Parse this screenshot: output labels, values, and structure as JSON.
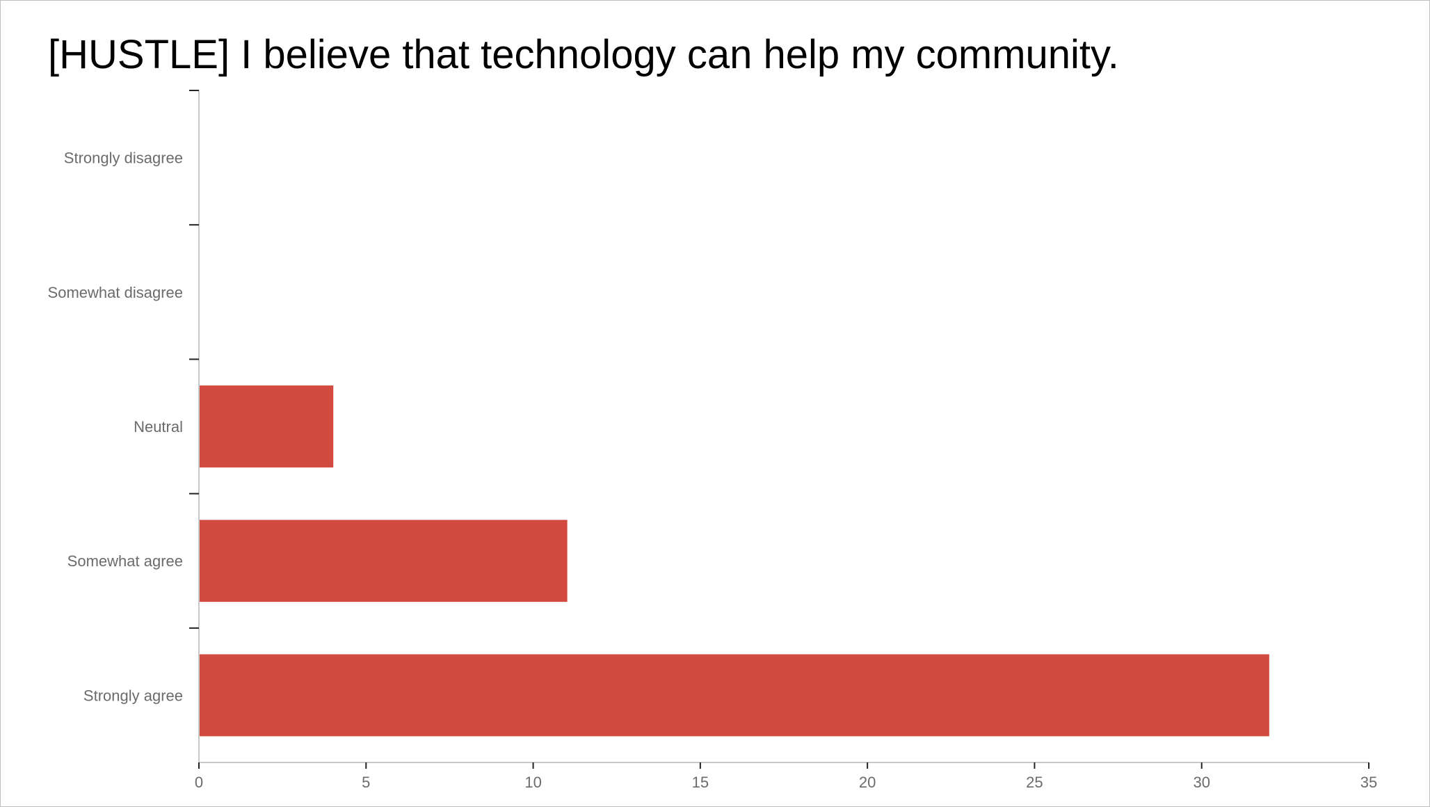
{
  "slide": {
    "title": "[HUSTLE] I believe that technology can help my community."
  },
  "colors": {
    "bar": "#d24a40",
    "axis": "#c8c8c8",
    "tick_mark": "#222222",
    "label": "#6b6b6b"
  },
  "chart_data": {
    "type": "bar",
    "orientation": "horizontal",
    "title": "[HUSTLE] I believe that technology can help my community.",
    "categories": [
      "Strongly disagree",
      "Somewhat disagree",
      "Neutral",
      "Somewhat agree",
      "Strongly agree"
    ],
    "values": [
      0,
      0,
      4,
      11,
      32
    ],
    "xlim": [
      0,
      35
    ],
    "xticks": [
      0,
      5,
      10,
      15,
      20,
      25,
      30,
      35
    ],
    "xlabel": "",
    "ylabel": "",
    "grid": false,
    "legend": "none"
  }
}
